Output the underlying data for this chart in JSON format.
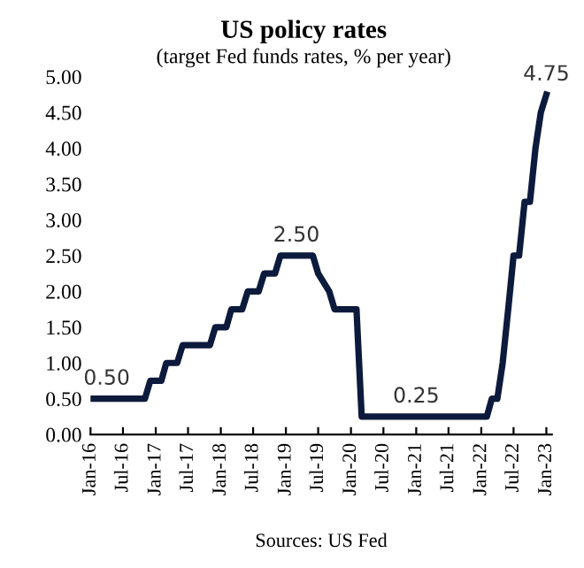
{
  "chart_data": {
    "type": "line",
    "title": "US policy rates",
    "subtitle": "(target Fed funds rates, % per year)",
    "x": [
      "2016-01",
      "2016-11",
      "2016-12",
      "2017-02",
      "2017-03",
      "2017-05",
      "2017-06",
      "2017-11",
      "2017-12",
      "2018-02",
      "2018-03",
      "2018-05",
      "2018-06",
      "2018-08",
      "2018-09",
      "2018-11",
      "2018-12",
      "2019-06",
      "2019-07",
      "2019-09",
      "2019-10",
      "2020-02",
      "2020-03",
      "2022-02",
      "2022-03",
      "2022-04",
      "2022-05",
      "2022-06",
      "2022-07",
      "2022-08",
      "2022-09",
      "2022-10",
      "2022-11",
      "2022-12",
      "2023-01"
    ],
    "series": [
      {
        "color": "#0c1a3c",
        "values": [
          0.5,
          0.5,
          0.75,
          0.75,
          1.0,
          1.0,
          1.25,
          1.25,
          1.5,
          1.5,
          1.75,
          1.75,
          2.0,
          2.0,
          2.25,
          2.25,
          2.5,
          2.5,
          2.25,
          2.0,
          1.75,
          1.75,
          0.25,
          0.25,
          0.5,
          0.5,
          1.0,
          1.75,
          2.5,
          2.5,
          3.25,
          3.25,
          4.0,
          4.5,
          4.75
        ]
      }
    ],
    "xlim": [
      "2016-01",
      "2023-02"
    ],
    "xticks": [
      {
        "value": "2016-01",
        "label": "Jan-16"
      },
      {
        "value": "2016-07",
        "label": "Jul-16"
      },
      {
        "value": "2017-01",
        "label": "Jan-17"
      },
      {
        "value": "2017-07",
        "label": "Jul-17"
      },
      {
        "value": "2018-01",
        "label": "Jan-18"
      },
      {
        "value": "2018-07",
        "label": "Jul-18"
      },
      {
        "value": "2019-01",
        "label": "Jan-19"
      },
      {
        "value": "2019-07",
        "label": "Jul-19"
      },
      {
        "value": "2020-01",
        "label": "Jan-20"
      },
      {
        "value": "2020-07",
        "label": "Jul-20"
      },
      {
        "value": "2021-01",
        "label": "Jan-21"
      },
      {
        "value": "2021-07",
        "label": "Jul-21"
      },
      {
        "value": "2022-01",
        "label": "Jan-22"
      },
      {
        "value": "2022-07",
        "label": "Jul-22"
      },
      {
        "value": "2023-01",
        "label": "Jan-23"
      }
    ],
    "ylim": [
      0,
      5
    ],
    "yticks": [
      {
        "value": 0,
        "label": "0.00"
      },
      {
        "value": 0.5,
        "label": "0.50"
      },
      {
        "value": 1,
        "label": "1.00"
      },
      {
        "value": 1.5,
        "label": "1.50"
      },
      {
        "value": 2,
        "label": "2.00"
      },
      {
        "value": 2.5,
        "label": "2.50"
      },
      {
        "value": 3,
        "label": "3.00"
      },
      {
        "value": 3.5,
        "label": "3.50"
      },
      {
        "value": 4,
        "label": "4.00"
      },
      {
        "value": 4.5,
        "label": "4.50"
      },
      {
        "value": 5,
        "label": "5.00"
      }
    ],
    "grid": false,
    "legend": false,
    "marker": "none",
    "line_style": "solid",
    "annotations": [
      {
        "text": "0.50",
        "x": "2016-04",
        "y": 0.5
      },
      {
        "text": "2.50",
        "x": "2019-03",
        "y": 2.5
      },
      {
        "text": "0.25",
        "x": "2021-01",
        "y": 0.25
      },
      {
        "text": "4.75",
        "x": "2023-01",
        "y": 4.75
      },
      "Sources: US Fed"
    ]
  }
}
